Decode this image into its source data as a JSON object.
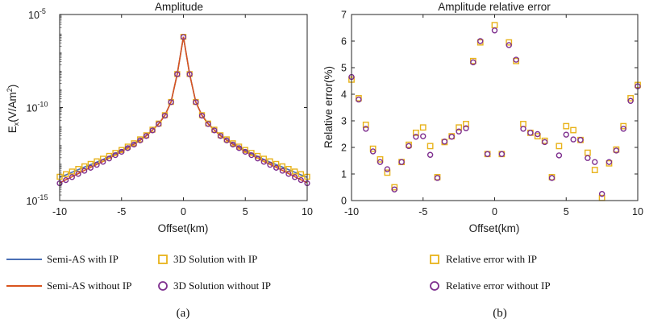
{
  "colors": {
    "semi_with_ip": "#4a6fb5",
    "semi_without_ip": "#d9541e",
    "solution_with_ip": "#e8b21a",
    "solution_without_ip": "#7e2f8e",
    "axis": "#262626"
  },
  "panel_labels": {
    "a": "(a)",
    "b": "(b)"
  },
  "legend_a": {
    "semi_with": "Semi-AS with IP",
    "semi_without": "Semi-AS without IP",
    "sol_with": "3D Solution with IP",
    "sol_without": "3D Solution without IP"
  },
  "legend_b": {
    "err_with": "Relative error with IP",
    "err_without": "Relative error without IP"
  },
  "chart_data": [
    {
      "type": "line",
      "title": "Amplitude",
      "xlabel": "Offset(km)",
      "ylabel_main": "E",
      "ylabel_sub": "x",
      "ylabel_rest": "(V/Am",
      "ylabel_sup": "2",
      "ylabel_end": ")",
      "yscale": "log",
      "xlim": [
        -10,
        10
      ],
      "ylim_exp": [
        -15,
        -5
      ],
      "xticks": [
        -10,
        -5,
        0,
        5,
        10
      ],
      "xtick_labels": [
        "-10",
        "-5",
        "0",
        "5",
        "10"
      ],
      "yticks_exp": [
        -5,
        -10,
        -15
      ],
      "ytick_base": "10",
      "ytick_exps": [
        "-5",
        "-10",
        "-15"
      ],
      "x": [
        -10,
        -9.5,
        -9,
        -8.5,
        -8,
        -7.5,
        -7,
        -6.5,
        -6,
        -5.5,
        -5,
        -4.5,
        -4,
        -3.5,
        -3,
        -2.5,
        -2,
        -1.5,
        -1,
        -0.5,
        0,
        0.5,
        1,
        1.5,
        2,
        2.5,
        3,
        3.5,
        4,
        4.5,
        5,
        5.5,
        6,
        6.5,
        7,
        7.5,
        8,
        8.5,
        9,
        9.5,
        10
      ],
      "series": [
        {
          "name": "Semi-AS with IP",
          "kind": "line",
          "log10_values": [
            -13.75,
            -13.62,
            -13.48,
            -13.34,
            -13.2,
            -13.07,
            -12.93,
            -12.79,
            -12.63,
            -12.47,
            -12.31,
            -12.12,
            -11.94,
            -11.73,
            -11.5,
            -11.2,
            -10.87,
            -10.42,
            -9.7,
            -8.2,
            -6.2,
            -8.2,
            -9.7,
            -10.42,
            -10.87,
            -11.2,
            -11.5,
            -11.73,
            -11.94,
            -12.12,
            -12.31,
            -12.47,
            -12.63,
            -12.79,
            -12.93,
            -13.07,
            -13.2,
            -13.34,
            -13.48,
            -13.62,
            -13.75
          ]
        },
        {
          "name": "Semi-AS without IP",
          "kind": "line",
          "log10_values": [
            -14.05,
            -13.88,
            -13.72,
            -13.55,
            -13.38,
            -13.22,
            -13.06,
            -12.9,
            -12.72,
            -12.55,
            -12.37,
            -12.17,
            -11.98,
            -11.76,
            -11.52,
            -11.22,
            -10.88,
            -10.43,
            -9.7,
            -8.2,
            -6.2,
            -8.2,
            -9.7,
            -10.43,
            -10.88,
            -11.22,
            -11.52,
            -11.76,
            -11.98,
            -12.17,
            -12.37,
            -12.55,
            -12.72,
            -12.9,
            -13.06,
            -13.22,
            -13.38,
            -13.55,
            -13.72,
            -13.88,
            -14.05
          ]
        },
        {
          "name": "3D Solution with IP",
          "kind": "square",
          "log10_values": [
            -13.72,
            -13.58,
            -13.44,
            -13.3,
            -13.16,
            -13.03,
            -12.89,
            -12.75,
            -12.6,
            -12.44,
            -12.28,
            -12.1,
            -11.92,
            -11.71,
            -11.49,
            -11.19,
            -10.86,
            -10.41,
            -9.7,
            -8.2,
            -6.2,
            -8.2,
            -9.7,
            -10.41,
            -10.86,
            -11.19,
            -11.49,
            -11.71,
            -11.92,
            -12.1,
            -12.28,
            -12.44,
            -12.6,
            -12.75,
            -12.89,
            -13.03,
            -13.16,
            -13.3,
            -13.44,
            -13.58,
            -13.72
          ]
        },
        {
          "name": "3D Solution without IP",
          "kind": "circle",
          "log10_values": [
            -14.07,
            -13.9,
            -13.74,
            -13.57,
            -13.4,
            -13.24,
            -13.08,
            -12.92,
            -12.74,
            -12.56,
            -12.38,
            -12.18,
            -11.99,
            -11.77,
            -11.53,
            -11.23,
            -10.89,
            -10.44,
            -9.71,
            -8.21,
            -6.21,
            -8.21,
            -9.71,
            -10.44,
            -10.89,
            -11.23,
            -11.53,
            -11.77,
            -11.99,
            -12.18,
            -12.38,
            -12.56,
            -12.74,
            -12.92,
            -13.08,
            -13.24,
            -13.4,
            -13.57,
            -13.74,
            -13.9,
            -14.07
          ]
        }
      ]
    },
    {
      "type": "scatter",
      "title": "Amplitude relative error",
      "xlabel": "Offset(km)",
      "ylabel": "Relative error(%)",
      "xlim": [
        -10,
        10
      ],
      "ylim": [
        0,
        7
      ],
      "xticks": [
        -10,
        -5,
        0,
        5,
        10
      ],
      "xtick_labels": [
        "-10",
        "-5",
        "0",
        "5",
        "10"
      ],
      "yticks": [
        0,
        1,
        2,
        3,
        4,
        5,
        6,
        7
      ],
      "ytick_labels": [
        "0",
        "1",
        "2",
        "3",
        "4",
        "5",
        "6",
        "7"
      ],
      "x": [
        -10,
        -9.5,
        -9,
        -8.5,
        -8,
        -7.5,
        -7,
        -6.5,
        -6,
        -5.5,
        -5,
        -4.5,
        -4,
        -3.5,
        -3,
        -2.5,
        -2,
        -1.5,
        -1,
        -0.5,
        0,
        0.5,
        1,
        1.5,
        2,
        2.5,
        3,
        3.5,
        4,
        4.5,
        5,
        5.5,
        6,
        6.5,
        7,
        7.5,
        8,
        8.5,
        9,
        9.5,
        10
      ],
      "series": [
        {
          "name": "Relative error with IP",
          "kind": "square",
          "values": [
            4.55,
            3.85,
            2.85,
            1.95,
            1.55,
            1.05,
            0.5,
            1.45,
            2.1,
            2.55,
            2.75,
            2.05,
            0.88,
            2.2,
            2.42,
            2.75,
            2.88,
            5.25,
            5.95,
            1.75,
            6.6,
            1.75,
            5.95,
            5.25,
            2.88,
            2.55,
            2.42,
            2.25,
            0.88,
            2.05,
            2.8,
            2.65,
            2.28,
            1.8,
            1.15,
            0.1,
            1.4,
            1.92,
            2.8,
            3.85,
            4.35
          ]
        },
        {
          "name": "Relative error without IP",
          "kind": "circle",
          "values": [
            4.65,
            3.8,
            2.7,
            1.85,
            1.45,
            1.18,
            0.42,
            1.45,
            2.05,
            2.4,
            2.42,
            1.72,
            0.85,
            2.22,
            2.4,
            2.6,
            2.72,
            5.2,
            6.0,
            1.75,
            6.4,
            1.75,
            5.85,
            5.3,
            2.7,
            2.55,
            2.5,
            2.2,
            0.85,
            1.7,
            2.48,
            2.3,
            2.28,
            1.6,
            1.45,
            0.25,
            1.45,
            1.88,
            2.7,
            3.75,
            4.3
          ]
        }
      ]
    }
  ]
}
